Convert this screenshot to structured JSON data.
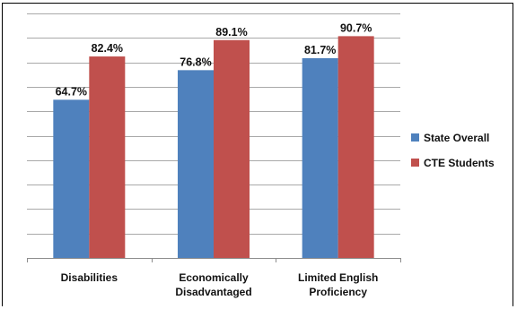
{
  "chart_data": {
    "type": "bar",
    "categories": [
      [
        "Disabilities"
      ],
      [
        "Economically",
        "Disadvantaged"
      ],
      [
        "Limited English",
        "Proficiency"
      ]
    ],
    "series": [
      {
        "name": "State Overall",
        "values": [
          64.7,
          76.8,
          81.7
        ],
        "labels": [
          "64.7%",
          "76.8%",
          "81.7%"
        ],
        "color": "#4f81bd"
      },
      {
        "name": "CTE Students",
        "values": [
          82.4,
          89.1,
          90.7
        ],
        "labels": [
          "82.4%",
          "89.1%",
          "90.7%"
        ],
        "color": "#c0504d"
      }
    ],
    "ylim": [
      0,
      100
    ],
    "grid": true,
    "legend_position": "right"
  }
}
